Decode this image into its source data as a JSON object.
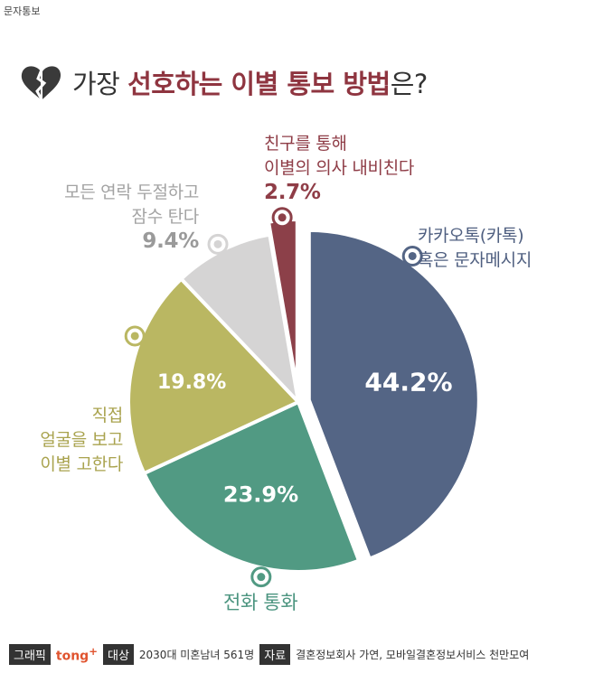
{
  "top_tag": "문자통보",
  "title": {
    "prefix": "가장 ",
    "accent": "선호하는 이별 통보 방법",
    "suffix": "은?"
  },
  "chart_data": {
    "type": "pie",
    "title": "가장 선호하는 이별 통보 방법은?",
    "slices": [
      {
        "label": "카카오톡(카톡) 혹은 문자메시지",
        "value": 44.2,
        "value_label": "44.2%",
        "color": "#546585"
      },
      {
        "label": "전화 통화",
        "value": 23.9,
        "value_label": "23.9%",
        "color": "#519a83"
      },
      {
        "label": "직접 얼굴을 보고 이별 고한다",
        "value": 19.8,
        "value_label": "19.8%",
        "color": "#bab762"
      },
      {
        "label": "모든 연락 두절하고 잠수 탄다",
        "value": 9.4,
        "value_label": "9.4%",
        "color": "#d5d4d4"
      },
      {
        "label": "친구를 통해 이별의 의사 내비친다",
        "value": 2.7,
        "value_label": "2.7%",
        "color": "#8c4049"
      }
    ]
  },
  "labels": {
    "kakao": {
      "line1": "카카오톡(카톡)",
      "line2": "혹은 문자메시지",
      "color": "#4f5f80"
    },
    "phone": {
      "line1": "전화 통화",
      "color": "#4c9580"
    },
    "direct": {
      "line1": "직접",
      "line2": "얼굴을 보고",
      "line3": "이별 고한다",
      "color": "#a9a34e"
    },
    "ghost": {
      "line1": "모든 연락 두절하고",
      "line2": "잠수 탄다",
      "pct": "9.4%",
      "color": "#a3a3a3"
    },
    "friend": {
      "line1": "친구를 통해",
      "line2": "이별의 의사 내비친다",
      "pct": "2.7%",
      "color": "#8f3d47"
    }
  },
  "footer": {
    "graphic_tag": "그래픽",
    "brand": "tong",
    "brand_sup": "+",
    "target_tag": "대상",
    "target_text": "2030대 미혼남녀 561명",
    "source_tag": "자료",
    "source_text": "결혼정보회사 가연, 모바일결혼정보서비스 천만모여"
  }
}
